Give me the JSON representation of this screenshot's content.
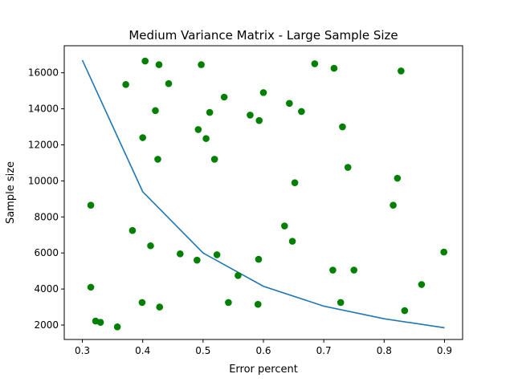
{
  "chart_data": {
    "type": "scatter",
    "title": "Medium Variance Matrix - Large Sample Size",
    "xlabel": "Error percent",
    "ylabel": "Sample size",
    "xlim": [
      0.27,
      0.93
    ],
    "ylim": [
      1200,
      17500
    ],
    "xticks": [
      0.3,
      0.4,
      0.5,
      0.6,
      0.7,
      0.8,
      0.9
    ],
    "xtick_labels": [
      "0.3",
      "0.4",
      "0.5",
      "0.6",
      "0.7",
      "0.8",
      "0.9"
    ],
    "yticks": [
      2000,
      4000,
      6000,
      8000,
      10000,
      12000,
      14000,
      16000
    ],
    "ytick_labels": [
      "2000",
      "4000",
      "6000",
      "8000",
      "10000",
      "12000",
      "14000",
      "16000"
    ],
    "grid": false,
    "colors": {
      "line": "#1f77b4",
      "points": "#008000"
    },
    "line_series": {
      "x": [
        0.3,
        0.4,
        0.5,
        0.6,
        0.7,
        0.8,
        0.9
      ],
      "y": [
        16700,
        9400,
        6000,
        4150,
        3050,
        2350,
        1850
      ]
    },
    "scatter_series": {
      "x": [
        0.314,
        0.314,
        0.322,
        0.33,
        0.358,
        0.372,
        0.383,
        0.399,
        0.4,
        0.404,
        0.413,
        0.421,
        0.425,
        0.427,
        0.428,
        0.443,
        0.462,
        0.49,
        0.492,
        0.497,
        0.505,
        0.511,
        0.519,
        0.523,
        0.535,
        0.542,
        0.558,
        0.578,
        0.591,
        0.592,
        0.593,
        0.6,
        0.635,
        0.643,
        0.648,
        0.652,
        0.663,
        0.685,
        0.715,
        0.717,
        0.728,
        0.731,
        0.74,
        0.75,
        0.815,
        0.822,
        0.828,
        0.834,
        0.862,
        0.899
      ],
      "y": [
        8650,
        4100,
        2220,
        2150,
        1900,
        15350,
        7250,
        3250,
        12400,
        16650,
        6400,
        13900,
        11200,
        16450,
        3000,
        15400,
        5950,
        5600,
        12850,
        16450,
        12350,
        13800,
        11200,
        5900,
        14650,
        3250,
        4750,
        13650,
        3150,
        5650,
        13350,
        14900,
        7500,
        14300,
        6650,
        9900,
        13850,
        16500,
        5050,
        16250,
        3250,
        13000,
        10750,
        5050,
        8650,
        10150,
        16100,
        2800,
        4250,
        6050
      ]
    }
  }
}
